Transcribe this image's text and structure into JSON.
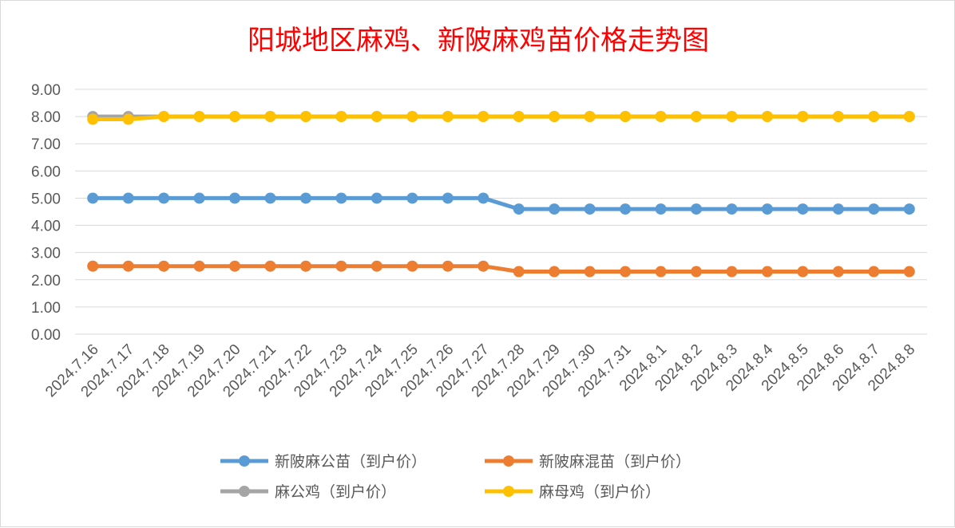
{
  "chart_data": {
    "type": "line",
    "title": "阳城地区麻鸡、新陂麻鸡苗价格走势图",
    "categories": [
      "2024.7.16",
      "2024.7.17",
      "2024.7.18",
      "2024.7.19",
      "2024.7.20",
      "2024.7.21",
      "2024.7.22",
      "2024.7.23",
      "2024.7.24",
      "2024.7.25",
      "2024.7.26",
      "2024.7.27",
      "2024.7.28",
      "2024.7.29",
      "2024.7.30",
      "2024.7.31",
      "2024.8.1",
      "2024.8.2",
      "2024.8.3",
      "2024.8.4",
      "2024.8.5",
      "2024.8.6",
      "2024.8.7",
      "2024.8.8"
    ],
    "ylim": [
      0,
      9
    ],
    "yticks": [
      "0.00",
      "1.00",
      "2.00",
      "3.00",
      "4.00",
      "5.00",
      "6.00",
      "7.00",
      "8.00",
      "9.00"
    ],
    "grid": true,
    "legend_position": "bottom",
    "series": [
      {
        "name": "新陂麻公苗（到户价）",
        "color": "#5b9bd5",
        "values": [
          5,
          5,
          5,
          5,
          5,
          5,
          5,
          5,
          5,
          5,
          5,
          5,
          4.6,
          4.6,
          4.6,
          4.6,
          4.6,
          4.6,
          4.6,
          4.6,
          4.6,
          4.6,
          4.6,
          4.6
        ]
      },
      {
        "name": "新陂麻混苗（到户价）",
        "color": "#ed7d31",
        "values": [
          2.5,
          2.5,
          2.5,
          2.5,
          2.5,
          2.5,
          2.5,
          2.5,
          2.5,
          2.5,
          2.5,
          2.5,
          2.3,
          2.3,
          2.3,
          2.3,
          2.3,
          2.3,
          2.3,
          2.3,
          2.3,
          2.3,
          2.3,
          2.3
        ]
      },
      {
        "name": "麻公鸡（到户价）",
        "color": "#a5a5a5",
        "values": [
          8,
          8,
          8,
          8,
          8,
          8,
          8,
          8,
          8,
          8,
          8,
          8,
          8,
          8,
          8,
          8,
          8,
          8,
          8,
          8,
          8,
          8,
          8,
          8
        ]
      },
      {
        "name": "麻母鸡（到户价）",
        "color": "#ffc000",
        "values": [
          7.9,
          7.9,
          8,
          8,
          8,
          8,
          8,
          8,
          8,
          8,
          8,
          8,
          8,
          8,
          8,
          8,
          8,
          8,
          8,
          8,
          8,
          8,
          8,
          8
        ]
      }
    ]
  }
}
